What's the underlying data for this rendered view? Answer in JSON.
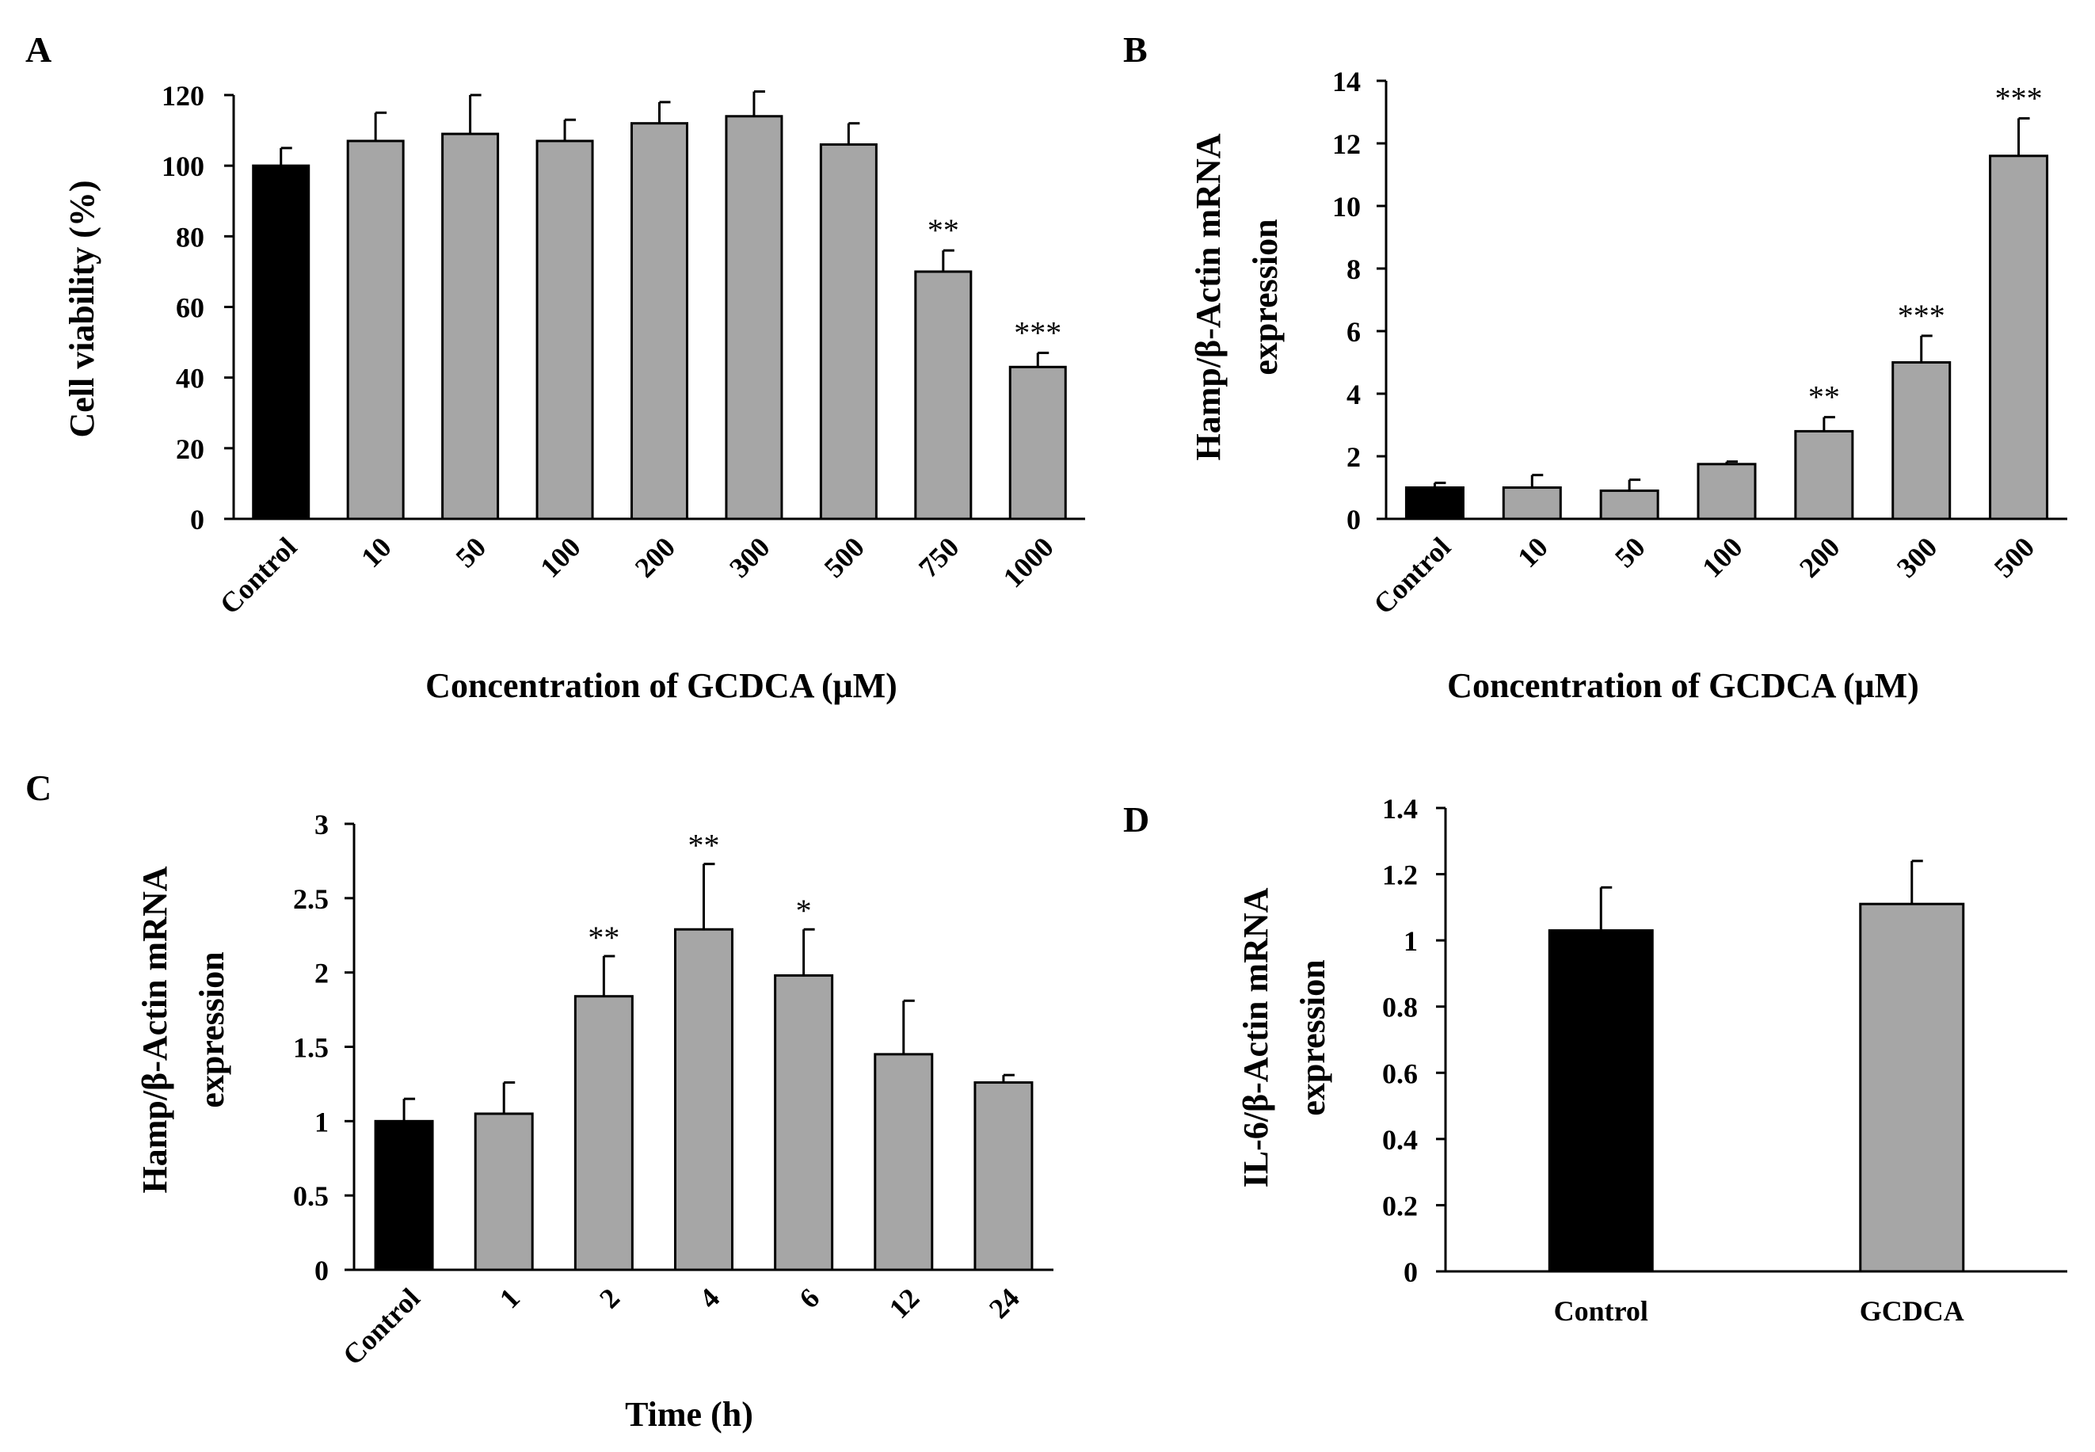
{
  "chart_data": [
    {
      "panel": "A",
      "type": "bar",
      "title": "",
      "xlabel": "Concentration of GCDCA (μM)",
      "ylabel": "Cell viability (%)",
      "ylim": [
        0,
        120
      ],
      "yticks": [
        0,
        20,
        40,
        60,
        80,
        100,
        120
      ],
      "categories": [
        "Control",
        "10",
        "50",
        "100",
        "200",
        "300",
        "500",
        "750",
        "1000"
      ],
      "values": [
        100,
        107,
        109,
        107,
        112,
        114,
        106,
        70,
        43
      ],
      "errors": [
        5,
        8,
        11,
        6,
        6,
        7,
        6,
        6,
        4
      ],
      "colors": [
        "#000000",
        "#a6a6a6",
        "#a6a6a6",
        "#a6a6a6",
        "#a6a6a6",
        "#a6a6a6",
        "#a6a6a6",
        "#a6a6a6",
        "#a6a6a6"
      ],
      "significance": [
        "",
        "",
        "",
        "",
        "",
        "",
        "",
        "**",
        "***"
      ]
    },
    {
      "panel": "B",
      "type": "bar",
      "title": "",
      "xlabel": "Concentration of GCDCA (μM)",
      "ylabel": [
        "Hamp/β-Actin mRNA",
        "expression"
      ],
      "ylim": [
        0,
        14
      ],
      "yticks": [
        0,
        2,
        4,
        6,
        8,
        10,
        12,
        14
      ],
      "categories": [
        "Control",
        "10",
        "50",
        "100",
        "200",
        "300",
        "500"
      ],
      "values": [
        1.0,
        1.0,
        0.9,
        1.75,
        2.8,
        5.0,
        11.6
      ],
      "errors": [
        0.15,
        0.4,
        0.35,
        0.08,
        0.45,
        0.85,
        1.2
      ],
      "colors": [
        "#000000",
        "#a6a6a6",
        "#a6a6a6",
        "#a6a6a6",
        "#a6a6a6",
        "#a6a6a6",
        "#a6a6a6"
      ],
      "significance": [
        "",
        "",
        "",
        "",
        "**",
        "***",
        "***"
      ]
    },
    {
      "panel": "C",
      "type": "bar",
      "title": "",
      "xlabel": "Time (h)",
      "ylabel": [
        "Hamp/β-Actin mRNA",
        "expression"
      ],
      "ylim": [
        0,
        3
      ],
      "yticks": [
        "0",
        "0.5",
        "1",
        "1.5",
        "2",
        "2.5",
        "3"
      ],
      "categories": [
        "Control",
        "1",
        "2",
        "4",
        "6",
        "12",
        "24"
      ],
      "values": [
        1.0,
        1.05,
        1.84,
        2.29,
        1.98,
        1.45,
        1.26
      ],
      "errors": [
        0.15,
        0.21,
        0.27,
        0.44,
        0.31,
        0.36,
        0.05
      ],
      "colors": [
        "#000000",
        "#a6a6a6",
        "#a6a6a6",
        "#a6a6a6",
        "#a6a6a6",
        "#a6a6a6",
        "#a6a6a6"
      ],
      "significance": [
        "",
        "",
        "**",
        "**",
        "*",
        "",
        ""
      ]
    },
    {
      "panel": "D",
      "type": "bar",
      "title": "",
      "xlabel": "",
      "ylabel": [
        "IL-6/β-Actin mRNA",
        "expression"
      ],
      "ylim": [
        0,
        1.4
      ],
      "yticks": [
        "0",
        "0.2",
        "0.4",
        "0.6",
        "0.8",
        "1",
        "1.2",
        "1.4"
      ],
      "categories": [
        "Control",
        "GCDCA"
      ],
      "values": [
        1.03,
        1.11
      ],
      "errors": [
        0.13,
        0.13
      ],
      "colors": [
        "#000000",
        "#a6a6a6"
      ],
      "significance": [
        "",
        ""
      ]
    }
  ]
}
